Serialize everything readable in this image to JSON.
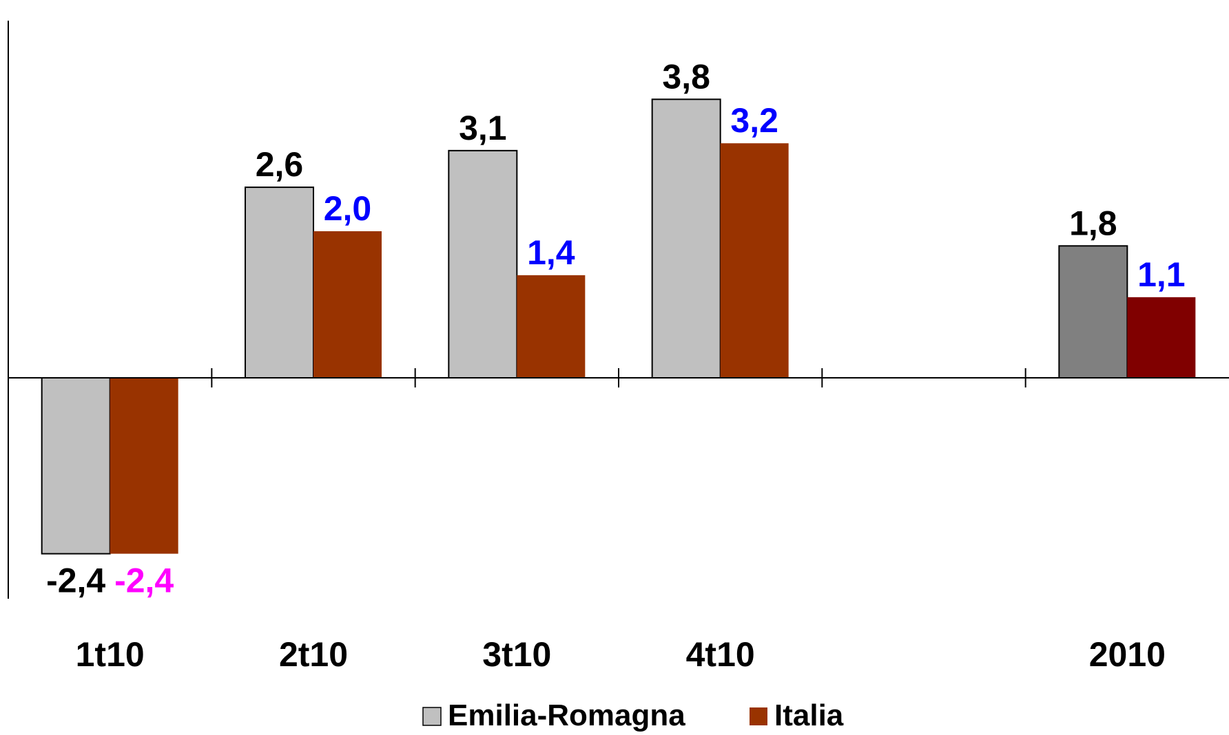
{
  "chart_data": {
    "type": "bar",
    "categories": [
      "1t10",
      "2t10",
      "3t10",
      "4t10",
      "",
      "2010"
    ],
    "series": [
      {
        "name": "Emilia-Romagna",
        "values": [
          -2.4,
          2.6,
          3.1,
          3.8,
          null,
          1.8
        ]
      },
      {
        "name": "Italia",
        "values": [
          -2.4,
          2.0,
          1.4,
          3.2,
          null,
          1.1
        ]
      }
    ],
    "data_labels": [
      [
        "-2,4",
        "2,6",
        "3,1",
        "3,8",
        "",
        "1,8"
      ],
      [
        "-2,4",
        "2,0",
        "1,4",
        "3,2",
        "",
        "1,1"
      ]
    ],
    "ylim": [
      -3.0,
      5.2
    ],
    "grid": false,
    "legend": "bottom-center",
    "colors": {
      "emilia_bar": "#c0c0c0",
      "emilia_bar_annual": "#808080",
      "italia_bar": "#993300",
      "italia_bar_annual": "#800000",
      "label_default": "#000000",
      "label_italia_positive": "#0000ff",
      "label_italia_negative": "#ff00ff"
    }
  },
  "legend": {
    "items": [
      {
        "label": "Emilia-Romagna",
        "color": "#c0c0c0"
      },
      {
        "label": "Italia",
        "color": "#993300"
      }
    ]
  }
}
